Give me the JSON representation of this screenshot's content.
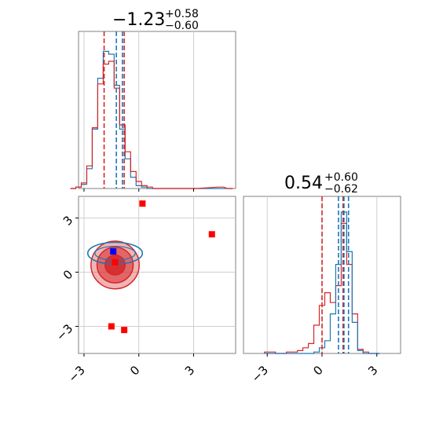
{
  "panels": {
    "top_left_title": {
      "main": "−1.23",
      "sup": "+0.58",
      "sub": "−0.60"
    },
    "right_title": {
      "main": "0.54",
      "sup": "+0.60",
      "sub": "−0.62"
    }
  },
  "colors": {
    "blue": "#1f77b4",
    "red": "#d62728",
    "grid": "#cfcfcf",
    "frame": "#808080"
  },
  "chart_data": [
    {
      "type": "histogram",
      "panel": "x-marginal",
      "x": [
        -3.6,
        -3.3,
        -3.0,
        -2.7,
        -2.4,
        -2.1,
        -1.8,
        -1.5,
        -1.2,
        -0.9,
        -0.6,
        -0.3,
        0.0,
        0.3,
        0.6,
        0.9,
        1.2,
        1.5,
        2.0,
        3.0,
        4.5,
        5.0
      ],
      "series": [
        {
          "color": "#1f77b4",
          "values": [
            0,
            0.01,
            0.03,
            0.14,
            0.42,
            0.78,
            0.97,
            0.95,
            0.73,
            0.42,
            0.21,
            0.08,
            0.02,
            0.01,
            0,
            0,
            0,
            0,
            0,
            0,
            0,
            0
          ]
        },
        {
          "color": "#d62728",
          "values": [
            0,
            0.01,
            0.04,
            0.16,
            0.43,
            0.74,
            0.88,
            0.9,
            0.71,
            0.45,
            0.26,
            0.12,
            0.05,
            0.02,
            0.01,
            0,
            0,
            0,
            0,
            0,
            0.01,
            0
          ]
        }
      ],
      "quantiles": {
        "blue": [
          -1.23,
          -0.9
        ],
        "red": [
          -1.9,
          -0.8
        ]
      },
      "xlim": [
        -3.3,
        5.3
      ]
    },
    {
      "type": "scatter",
      "panel": "joint",
      "xlim": [
        -3.3,
        5.3
      ],
      "ylim": [
        -4.5,
        4.2
      ],
      "xticks": [
        "−3",
        "0",
        "3"
      ],
      "yticks": [
        "3",
        "0",
        "−3"
      ],
      "markers": {
        "red": [
          [
            0.2,
            3.8
          ],
          [
            4.0,
            2.1
          ],
          [
            -1.3,
            0.55
          ],
          [
            -1.5,
            -3.0
          ],
          [
            -0.8,
            -3.2
          ]
        ],
        "blue": [
          [
            -1.4,
            1.15
          ]
        ]
      },
      "contours": {
        "red": {
          "center": [
            -1.3,
            0.4
          ],
          "radii": [
            [
              1.2,
              1.2
            ],
            [
              0.9,
              0.9
            ],
            [
              0.5,
              0.5
            ]
          ]
        },
        "blue": {
          "center": [
            -1.3,
            1.05
          ],
          "radii": [
            [
              1.3,
              0.55
            ]
          ]
        }
      }
    },
    {
      "type": "histogram",
      "panel": "y-marginal",
      "x": [
        -3.0,
        -2.7,
        -2.4,
        -2.1,
        -1.8,
        -1.5,
        -1.2,
        -0.9,
        -0.6,
        -0.3,
        0.0,
        0.3,
        0.6,
        0.9,
        1.2,
        1.5,
        1.8,
        2.1,
        2.4,
        2.7,
        3.0
      ],
      "series": [
        {
          "color": "#1f77b4",
          "values": [
            0,
            0,
            0,
            0,
            0,
            0,
            0,
            0,
            0,
            0.01,
            0.04,
            0.09,
            0.28,
            0.63,
            1.0,
            0.72,
            0.22,
            0.02,
            0,
            0,
            0
          ]
        },
        {
          "color": "#d62728",
          "values": [
            0.01,
            0.01,
            0,
            0,
            0.01,
            0.01,
            0.02,
            0.04,
            0.07,
            0.2,
            0.34,
            0.43,
            0.36,
            0.48,
            0.92,
            0.63,
            0.28,
            0.03,
            0.01,
            0,
            0
          ]
        }
      ],
      "quantiles": {
        "blue": [
          0.9,
          1.2,
          1.45
        ],
        "red": [
          0.0,
          1.15
        ]
      },
      "xlim": [
        -4.3,
        4.3
      ],
      "xticks": [
        "−3",
        "0",
        "3"
      ]
    }
  ]
}
